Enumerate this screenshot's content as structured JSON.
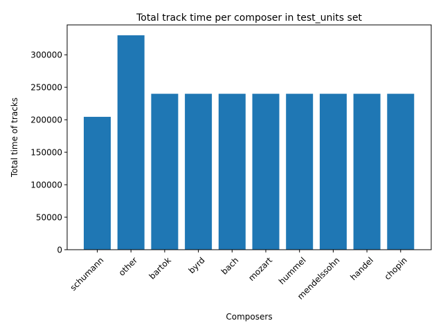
{
  "chart_data": {
    "type": "bar",
    "title": "Total track time per composer in test_units set",
    "xlabel": "Composers",
    "ylabel": "Total time of tracks",
    "categories": [
      "schumann",
      "other",
      "bartok",
      "byrd",
      "bach",
      "mozart",
      "hummel",
      "mendelssohn",
      "handel",
      "chopin"
    ],
    "values": [
      204500,
      330000,
      240000,
      240000,
      240000,
      240000,
      240000,
      240000,
      240000,
      240000
    ],
    "ylim": [
      0,
      346000
    ],
    "yticks": [
      0,
      50000,
      100000,
      150000,
      200000,
      250000,
      300000
    ],
    "grid": false,
    "bar_color": "#1f77b4"
  }
}
